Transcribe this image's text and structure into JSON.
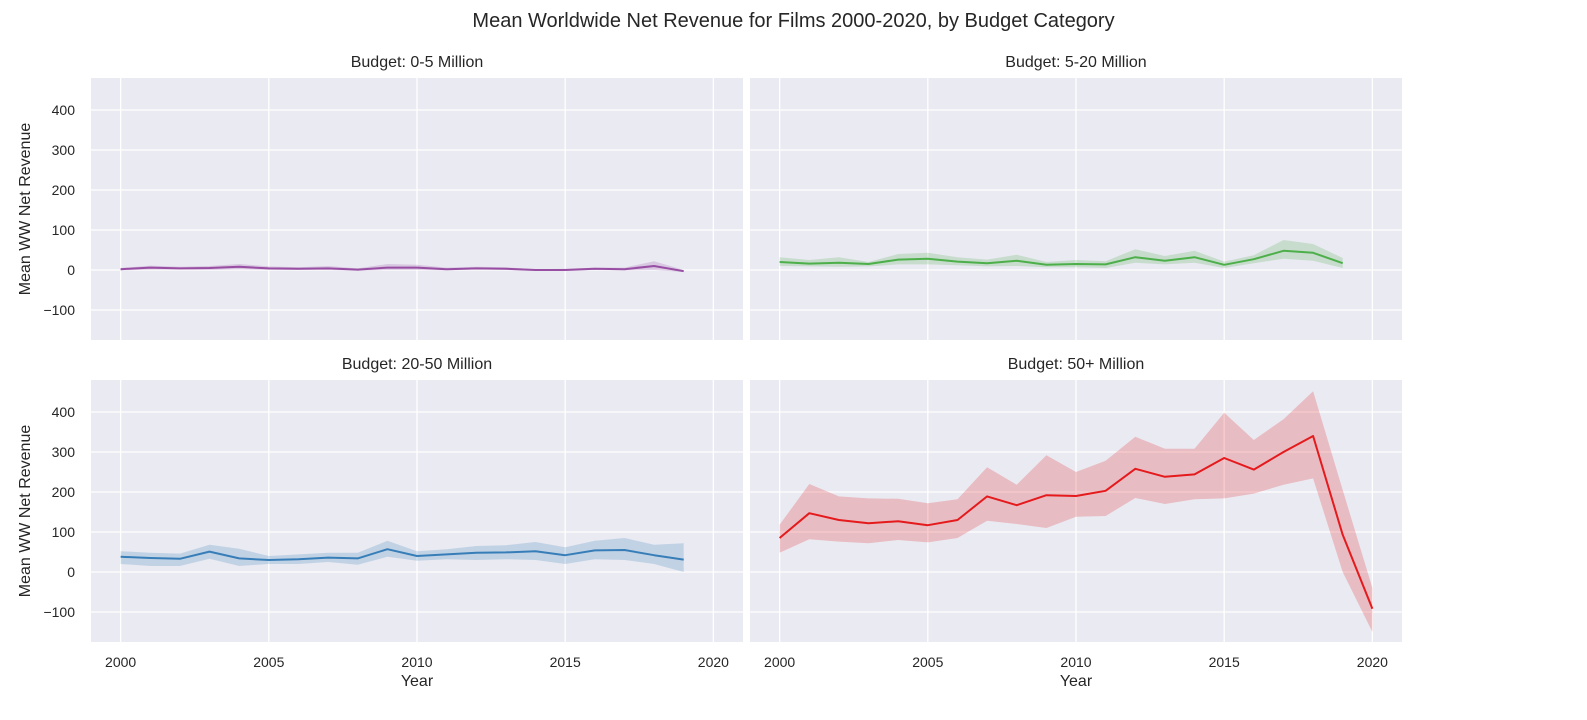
{
  "title": "Mean Worldwide Net Revenue for Films 2000-2020, by Budget Category",
  "chart_data": [
    {
      "type": "line",
      "title": "Budget: 0-5 Million",
      "xlabel": "",
      "ylabel": "Mean WW Net Revenue",
      "color": "#984ea3",
      "xlim": [
        1999,
        2021
      ],
      "ylim": [
        -175,
        480
      ],
      "xticks": [
        2000,
        2005,
        2010,
        2015,
        2020
      ],
      "yticks": [
        -100,
        0,
        100,
        200,
        300,
        400
      ],
      "show_xticklabels": false,
      "show_yticklabels": true,
      "grid": true,
      "x": [
        2000,
        2001,
        2002,
        2003,
        2004,
        2005,
        2006,
        2007,
        2008,
        2009,
        2010,
        2011,
        2012,
        2013,
        2014,
        2015,
        2016,
        2017,
        2018,
        2019
      ],
      "y": [
        2,
        6,
        4,
        5,
        8,
        4,
        3,
        4,
        1,
        6,
        6,
        2,
        4,
        3,
        0,
        0,
        3,
        2,
        10,
        -3
      ],
      "ci_low": [
        -1,
        1,
        1,
        0,
        2,
        0,
        0,
        0,
        -2,
        0,
        0,
        -1,
        1,
        0,
        -2,
        -2,
        0,
        -1,
        0,
        -5
      ],
      "ci_high": [
        5,
        11,
        8,
        10,
        15,
        9,
        7,
        10,
        4,
        15,
        13,
        6,
        8,
        7,
        2,
        3,
        6,
        6,
        22,
        0
      ]
    },
    {
      "type": "line",
      "title": "Budget: 5-20 Million",
      "xlabel": "",
      "ylabel": "",
      "color": "#4daf4a",
      "xlim": [
        1999,
        2021
      ],
      "ylim": [
        -175,
        480
      ],
      "xticks": [
        2000,
        2005,
        2010,
        2015,
        2020
      ],
      "yticks": [
        -100,
        0,
        100,
        200,
        300,
        400
      ],
      "show_xticklabels": false,
      "show_yticklabels": false,
      "grid": true,
      "x": [
        2000,
        2001,
        2002,
        2003,
        2004,
        2005,
        2006,
        2007,
        2008,
        2009,
        2010,
        2011,
        2012,
        2013,
        2014,
        2015,
        2016,
        2017,
        2018,
        2019
      ],
      "y": [
        20,
        16,
        18,
        15,
        26,
        28,
        21,
        17,
        23,
        13,
        15,
        14,
        32,
        23,
        32,
        13,
        27,
        48,
        43,
        17
      ],
      "ci_low": [
        10,
        9,
        8,
        9,
        14,
        14,
        12,
        9,
        10,
        7,
        7,
        5,
        18,
        14,
        18,
        5,
        17,
        28,
        23,
        5
      ],
      "ci_high": [
        32,
        25,
        32,
        20,
        40,
        43,
        32,
        26,
        38,
        20,
        25,
        22,
        52,
        35,
        48,
        21,
        37,
        75,
        65,
        30
      ]
    },
    {
      "type": "line",
      "title": "Budget: 20-50 Million",
      "xlabel": "Year",
      "ylabel": "Mean WW Net Revenue",
      "color": "#377eb8",
      "xlim": [
        1999,
        2021
      ],
      "ylim": [
        -175,
        480
      ],
      "xticks": [
        2000,
        2005,
        2010,
        2015,
        2020
      ],
      "yticks": [
        -100,
        0,
        100,
        200,
        300,
        400
      ],
      "show_xticklabels": true,
      "show_yticklabels": true,
      "grid": true,
      "x": [
        2000,
        2001,
        2002,
        2003,
        2004,
        2005,
        2006,
        2007,
        2008,
        2009,
        2010,
        2011,
        2012,
        2013,
        2014,
        2015,
        2016,
        2017,
        2018,
        2019
      ],
      "y": [
        38,
        35,
        33,
        51,
        34,
        30,
        32,
        36,
        34,
        57,
        40,
        44,
        48,
        49,
        52,
        42,
        54,
        55,
        42,
        31
      ],
      "ci_low": [
        20,
        15,
        15,
        33,
        15,
        20,
        20,
        25,
        18,
        38,
        28,
        32,
        30,
        32,
        30,
        20,
        32,
        30,
        20,
        0
      ],
      "ci_high": [
        52,
        48,
        46,
        68,
        58,
        40,
        44,
        48,
        48,
        78,
        52,
        57,
        65,
        67,
        75,
        62,
        78,
        85,
        68,
        72
      ]
    },
    {
      "type": "line",
      "title": "Budget: 50+ Million",
      "xlabel": "Year",
      "ylabel": "",
      "color": "#e41a1c",
      "xlim": [
        1999,
        2021
      ],
      "ylim": [
        -175,
        480
      ],
      "xticks": [
        2000,
        2005,
        2010,
        2015,
        2020
      ],
      "yticks": [
        -100,
        0,
        100,
        200,
        300,
        400
      ],
      "show_xticklabels": true,
      "show_yticklabels": false,
      "grid": true,
      "x": [
        2000,
        2001,
        2002,
        2003,
        2004,
        2005,
        2006,
        2007,
        2008,
        2009,
        2010,
        2011,
        2012,
        2013,
        2014,
        2015,
        2016,
        2017,
        2018,
        2019,
        2020
      ],
      "y": [
        85,
        147,
        130,
        122,
        127,
        117,
        130,
        189,
        167,
        192,
        190,
        203,
        258,
        238,
        244,
        285,
        256,
        300,
        340,
        93,
        -92
      ],
      "ci_low": [
        48,
        82,
        76,
        72,
        80,
        74,
        85,
        128,
        120,
        110,
        138,
        140,
        185,
        170,
        182,
        184,
        196,
        218,
        234,
        0,
        -150
      ],
      "ci_high": [
        118,
        220,
        189,
        184,
        183,
        172,
        182,
        262,
        218,
        292,
        250,
        278,
        338,
        308,
        308,
        398,
        330,
        382,
        452,
        205,
        -40
      ]
    }
  ]
}
